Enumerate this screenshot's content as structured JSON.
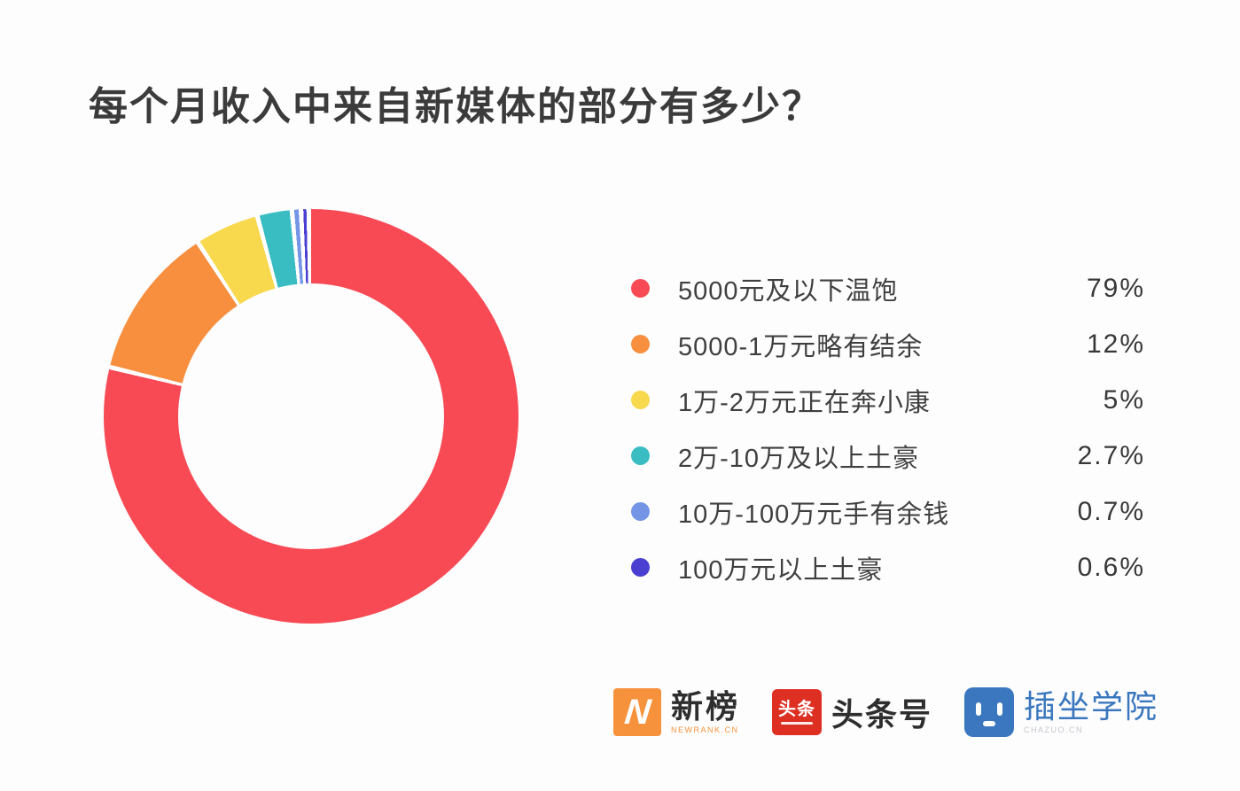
{
  "title": "每个月收入中来自新媒体的部分有多少？",
  "chart_data": {
    "type": "pie",
    "subtype": "donut",
    "title": "每个月收入中来自新媒体的部分有多少？",
    "legend_position": "right",
    "start_angle_deg": 0,
    "direction": "clockwise",
    "slice_gap_color": "#ffffff",
    "slices": [
      {
        "label": "5000元及以下温饱",
        "value": 79,
        "display": "79%",
        "color": "#f84a54"
      },
      {
        "label": "5000-1万元略有结余",
        "value": 12,
        "display": "12%",
        "color": "#f78f3f"
      },
      {
        "label": "1万-2万元正在奔小康",
        "value": 5,
        "display": "5%",
        "color": "#f8d84d"
      },
      {
        "label": "2万-10万及以上土豪",
        "value": 2.7,
        "display": "2.7%",
        "color": "#39bdc3"
      },
      {
        "label": "10万-100万元手有余钱",
        "value": 0.7,
        "display": "0.7%",
        "color": "#7494e6"
      },
      {
        "label": "100万元以上土豪",
        "value": 0.6,
        "display": "0.6%",
        "color": "#4a3fd0"
      }
    ]
  },
  "footer": {
    "logos": [
      {
        "name": "newrank",
        "icon": "newrank-n-icon",
        "icon_letter": "N",
        "text": "新榜",
        "subtext": "NEWRANK.CN",
        "accent": "#f6923c"
      },
      {
        "name": "toutiao",
        "icon": "toutiao-icon",
        "icon_text": "头条",
        "text": "头条号",
        "accent": "#de2f23"
      },
      {
        "name": "chazuo",
        "icon": "chazuo-face-icon",
        "text": "插坐学院",
        "subtext": "CHAZUO.CN",
        "accent": "#3a77be"
      }
    ]
  }
}
